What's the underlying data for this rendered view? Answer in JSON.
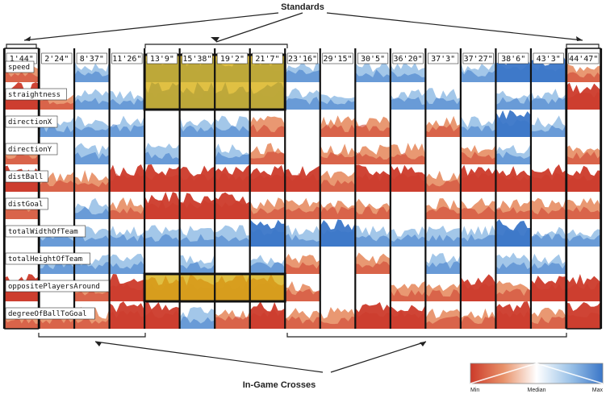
{
  "top_label": "Standards",
  "bottom_label": "In-Game Crosses",
  "time_labels": [
    "1'44\"",
    "2'24\"",
    "8'37\"",
    "11'26\"",
    "13'9\"",
    "15'38\"",
    "19'2\"",
    "21'7\"",
    "23'16\"",
    "29'15\"",
    "30'5\"",
    "36'20\"",
    "37'3\"",
    "37'27\"",
    "38'6\"",
    "43'3\"",
    "44'47\""
  ],
  "features": [
    "speed",
    "straightness",
    "directionX",
    "directionY",
    "distBall",
    "distGoal",
    "totalWidthOfTeam",
    "totalHeightOfTeam",
    "oppositePlayersAround",
    "degreeOfBallToGoal"
  ],
  "legend": {
    "min": "Min",
    "median": "Median",
    "max": "Max"
  },
  "colors": {
    "min": "#cc3a2a",
    "low": "#e8926a",
    "mid": "#ffffff",
    "high": "#9ec4e8",
    "max": "#3a76c8",
    "highlight": "#d9b21a"
  },
  "highlights": [
    {
      "kind": "columns",
      "from": 4,
      "to": 7,
      "rows": [
        0,
        1
      ]
    },
    {
      "kind": "columns",
      "from": 4,
      "to": 7,
      "rows": [
        8,
        8
      ]
    }
  ],
  "cell_levels": [
    [
      -1,
      0,
      1,
      0,
      2,
      2,
      2,
      2,
      1,
      0,
      1,
      1,
      0,
      1,
      2,
      2,
      -1
    ],
    [
      -2,
      -1,
      1,
      1,
      2,
      2,
      2,
      2,
      1,
      1,
      0,
      1,
      1,
      0,
      1,
      1,
      -2
    ],
    [
      0,
      1,
      1,
      1,
      0,
      1,
      1,
      -1,
      0,
      -1,
      -1,
      0,
      -1,
      1,
      2,
      1,
      0
    ],
    [
      -1,
      0,
      1,
      0,
      1,
      0,
      1,
      -1,
      0,
      -1,
      -1,
      -1,
      0,
      -1,
      1,
      0,
      -1
    ],
    [
      -2,
      -1,
      -1,
      -2,
      -2,
      -2,
      -2,
      -2,
      -2,
      -1,
      -2,
      -2,
      -1,
      -2,
      -2,
      -2,
      -2
    ],
    [
      -1,
      0,
      1,
      -1,
      -2,
      -2,
      -2,
      -1,
      -1,
      -1,
      -1,
      0,
      -1,
      -1,
      -1,
      -1,
      -1
    ],
    [
      0,
      1,
      1,
      1,
      1,
      1,
      1,
      2,
      1,
      2,
      1,
      1,
      1,
      1,
      2,
      1,
      1
    ],
    [
      0,
      1,
      1,
      1,
      0,
      1,
      0,
      1,
      -1,
      0,
      -1,
      0,
      1,
      0,
      1,
      1,
      0
    ],
    [
      -2,
      0,
      -1,
      -2,
      -2,
      -2,
      -2,
      -2,
      -1,
      0,
      0,
      -1,
      -1,
      -2,
      -1,
      -2,
      -2
    ],
    [
      -1,
      -1,
      -1,
      -2,
      -2,
      1,
      -1,
      -2,
      -1,
      -1,
      -2,
      -2,
      -1,
      -1,
      -2,
      -1,
      -2
    ]
  ]
}
